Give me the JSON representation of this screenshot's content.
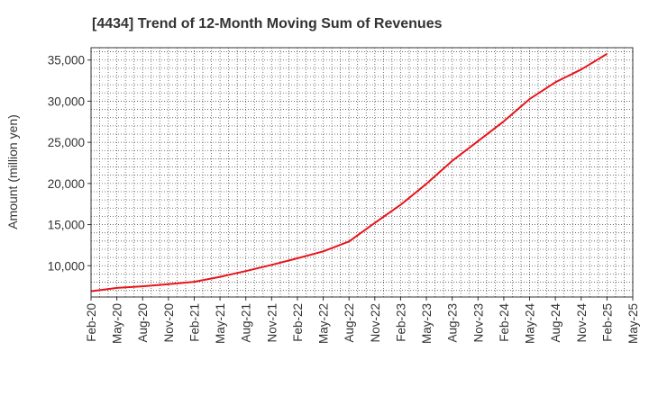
{
  "chart_data": {
    "type": "line",
    "title": "[4434]  Trend of 12-Month Moving Sum of Revenues",
    "xlabel": "",
    "ylabel": "Amount (million yen)",
    "x_tick_labels": [
      "Feb-20",
      "May-20",
      "Aug-20",
      "Nov-20",
      "Feb-21",
      "May-21",
      "Aug-21",
      "Nov-21",
      "Feb-22",
      "May-22",
      "Aug-22",
      "Nov-22",
      "Feb-23",
      "May-23",
      "Aug-23",
      "Nov-23",
      "Feb-24",
      "May-24",
      "Aug-24",
      "Nov-24",
      "Feb-25",
      "May-25"
    ],
    "y_ticks": [
      10000,
      15000,
      20000,
      25000,
      30000,
      35000
    ],
    "y_tick_labels": [
      "10,000",
      "15,000",
      "20,000",
      "25,000",
      "30,000",
      "35,000"
    ],
    "ylim": [
      6200,
      36500
    ],
    "grid": true,
    "series": [
      {
        "color": "#e8141c",
        "values": [
          6900,
          7300,
          7500,
          7750,
          8050,
          8650,
          9350,
          10100,
          10900,
          11750,
          12950,
          15200,
          17400,
          19950,
          22750,
          25150,
          27550,
          30250,
          32300,
          33850,
          35750
        ]
      }
    ]
  }
}
